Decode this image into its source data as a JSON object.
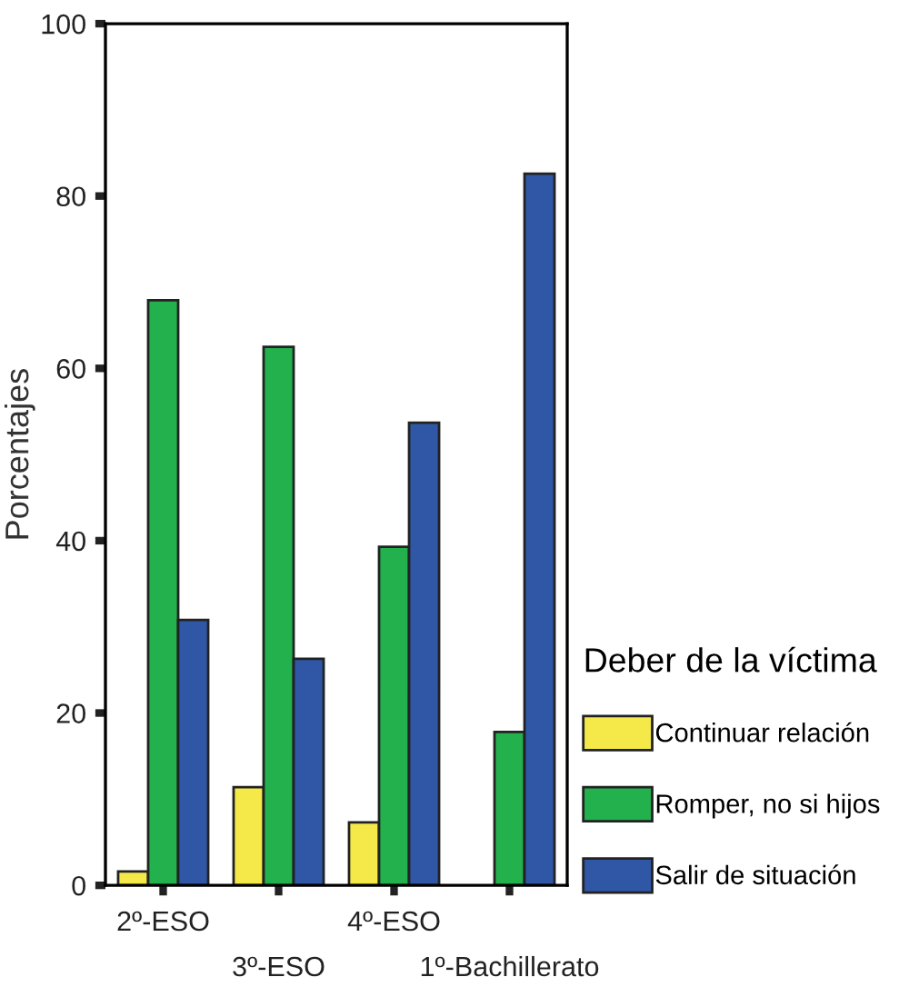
{
  "chart_data": {
    "type": "bar",
    "ylabel": "Porcentajes",
    "legend_title": "Deber de la víctima",
    "categories": [
      "2º-ESO",
      "3º-ESO",
      "4º-ESO",
      "1º-Bachillerato"
    ],
    "series": [
      {
        "name": "Continuar relación",
        "color": "#f5e94a",
        "values": [
          1.6,
          11.4,
          7.3,
          null
        ]
      },
      {
        "name": "Romper, no si hijos",
        "color": "#23b14d",
        "values": [
          67.9,
          62.5,
          39.3,
          17.8
        ]
      },
      {
        "name": "Salir de situación",
        "color": "#2f57a6",
        "values": [
          30.8,
          26.3,
          53.7,
          82.6
        ]
      }
    ],
    "ylim": [
      0,
      100
    ],
    "yticks": [
      0,
      20,
      40,
      60,
      80,
      100
    ],
    "grid": false,
    "legend": "right"
  }
}
